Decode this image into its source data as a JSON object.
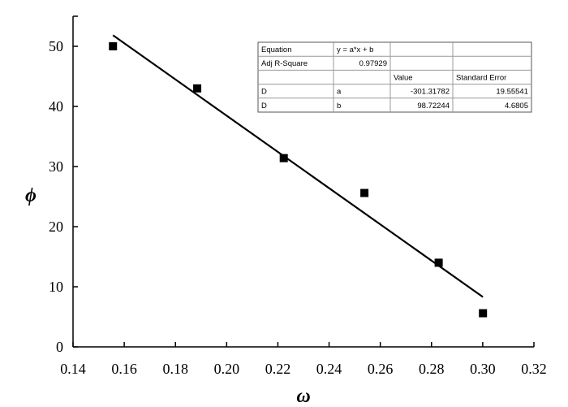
{
  "chart_data": {
    "type": "scatter",
    "xlabel": "ω",
    "ylabel": "ϕ",
    "xlim": [
      0.14,
      0.32
    ],
    "ylim": [
      0,
      55
    ],
    "xticks": [
      "0.14",
      "0.16",
      "0.18",
      "0.20",
      "0.22",
      "0.24",
      "0.26",
      "0.28",
      "0.30",
      "0.32"
    ],
    "yticks": [
      "0",
      "10",
      "20",
      "30",
      "40",
      "50"
    ],
    "grid": false,
    "points": [
      {
        "x": 0.1556,
        "y": 50.0
      },
      {
        "x": 0.1885,
        "y": 43.0
      },
      {
        "x": 0.2223,
        "y": 31.4
      },
      {
        "x": 0.2538,
        "y": 25.6
      },
      {
        "x": 0.2828,
        "y": 14.0
      },
      {
        "x": 0.3001,
        "y": 5.6
      }
    ],
    "fit_line": {
      "slope": -301.31782,
      "intercept": 98.72244,
      "x_range": [
        0.1556,
        0.3001
      ]
    },
    "marker_color": "#000000",
    "line_color": "#000000",
    "fit_table": {
      "rows": [
        [
          "Equation",
          "y = a*x + b",
          "",
          ""
        ],
        [
          "Adj R-Square",
          "0.97929",
          "",
          ""
        ],
        [
          "",
          "",
          "Value",
          "Standard Error"
        ],
        [
          "D",
          "a",
          "-301.31782",
          "19.55541"
        ],
        [
          "D",
          "b",
          "98.72244",
          "4.6805"
        ]
      ],
      "placement": "top-right"
    }
  }
}
